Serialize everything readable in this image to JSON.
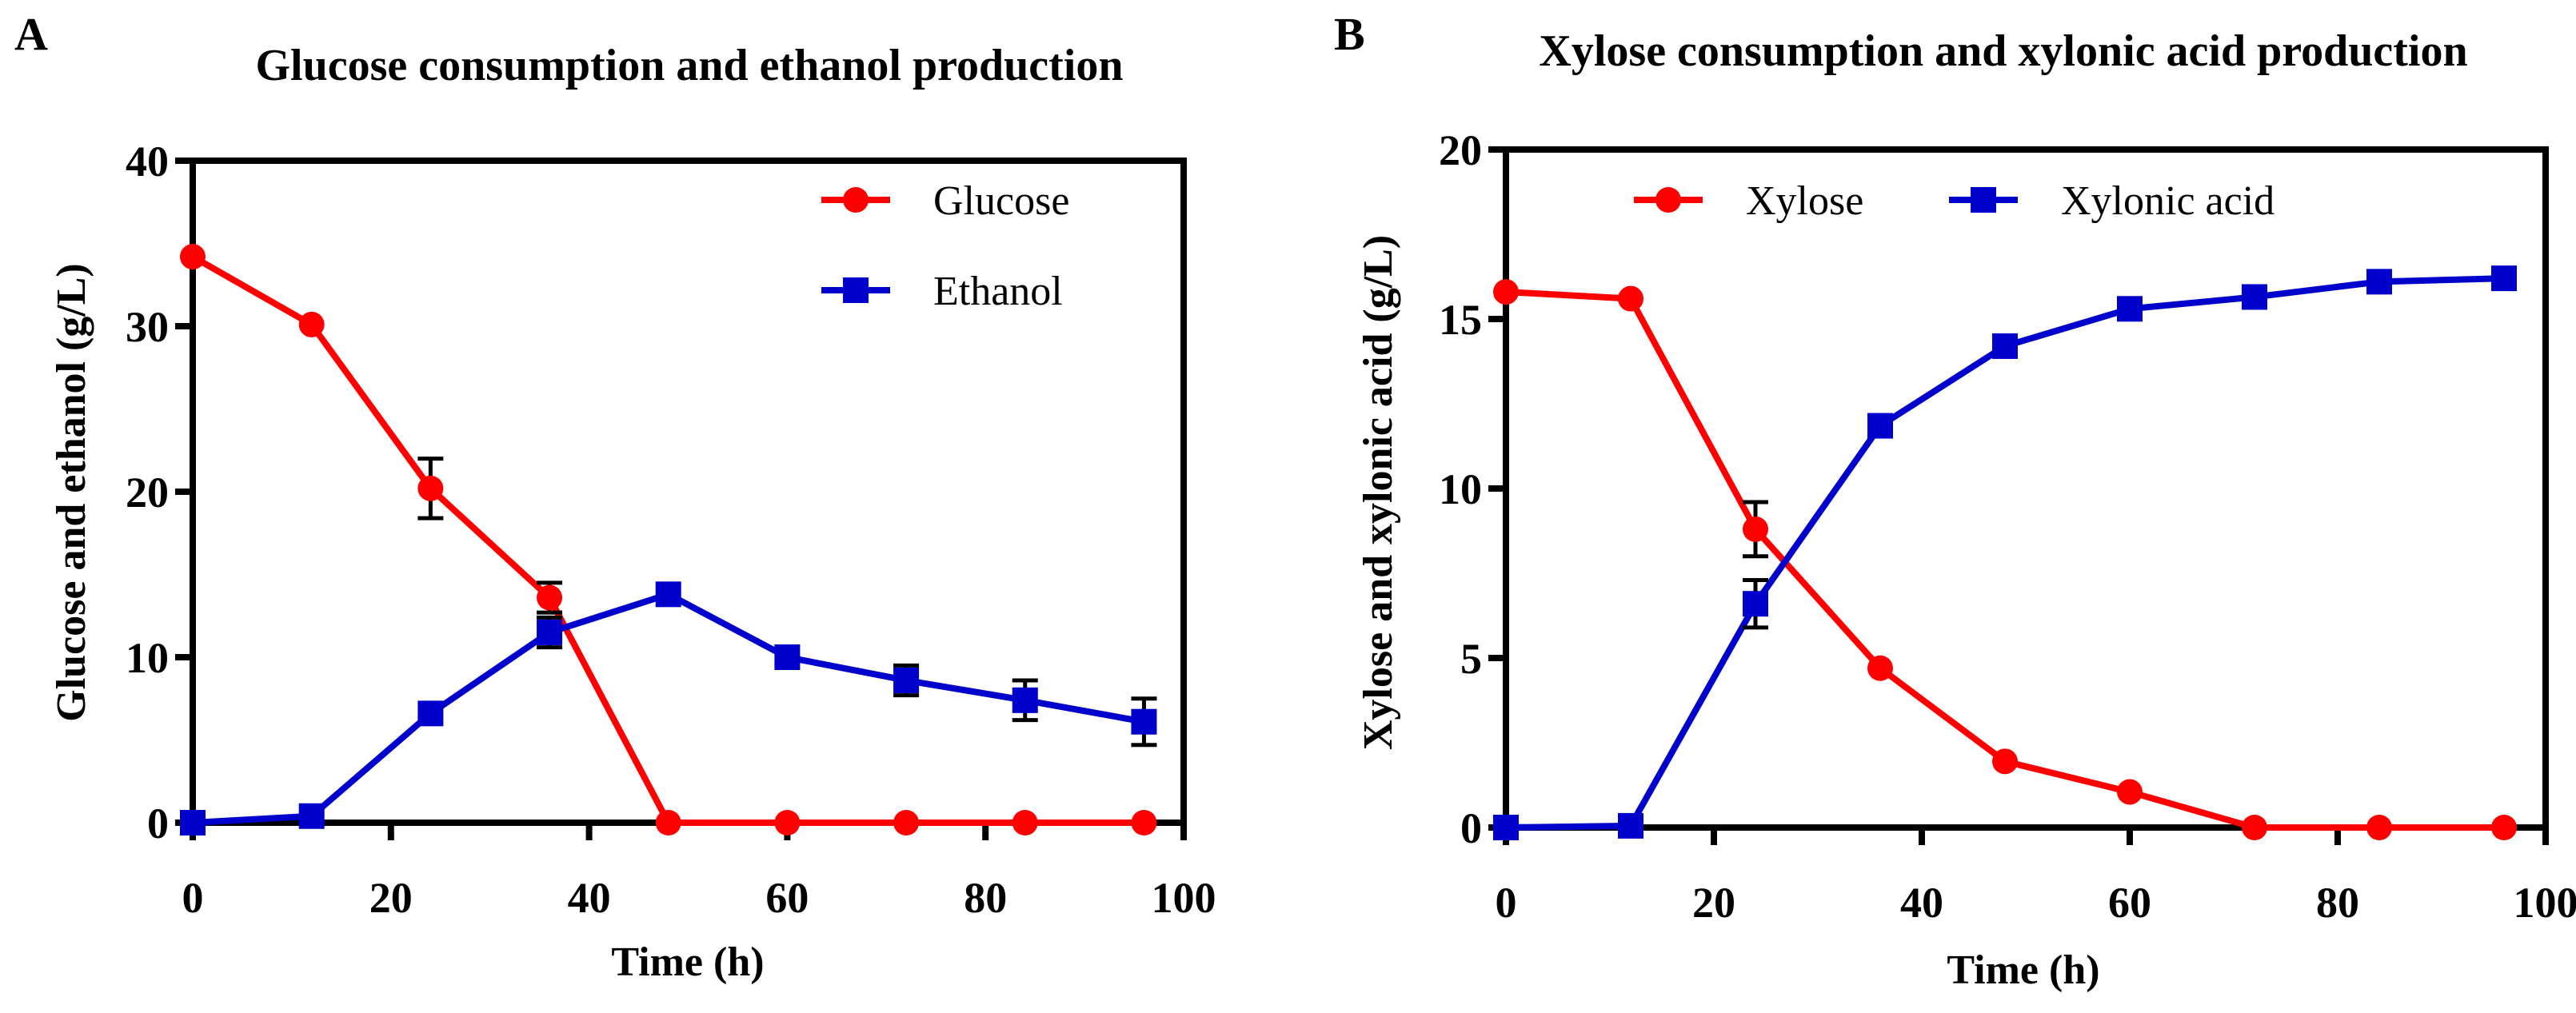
{
  "chart_data": [
    {
      "panel_label": "A",
      "type": "line",
      "title": "Glucose consumption and ethanol production",
      "xlabel": "Time (h)",
      "ylabel": "Glucose and ethanol (g/L)",
      "xlim": [
        0,
        100
      ],
      "ylim": [
        0,
        40
      ],
      "xticks": [
        0,
        20,
        40,
        60,
        80,
        100
      ],
      "yticks": [
        0,
        10,
        20,
        30,
        40
      ],
      "grid": false,
      "legend_position": "top-right",
      "legend_layout": "vertical",
      "x": [
        0,
        12,
        24,
        36,
        48,
        60,
        72,
        84,
        96
      ],
      "series": [
        {
          "name": "Glucose",
          "color": "#ff0000",
          "marker": "circle",
          "values": [
            34.2,
            30.1,
            20.2,
            13.6,
            0,
            0,
            0,
            0,
            0
          ],
          "errors": [
            0,
            0,
            1.8,
            0.9,
            0,
            0,
            0,
            0,
            0
          ]
        },
        {
          "name": "Ethanol",
          "color": "#0000cc",
          "marker": "square",
          "values": [
            0,
            0.4,
            6.6,
            11.5,
            13.8,
            10.0,
            8.6,
            7.4,
            6.1
          ],
          "errors": [
            0,
            0,
            0,
            0.9,
            0,
            0,
            0.9,
            1.2,
            1.4
          ]
        }
      ]
    },
    {
      "panel_label": "B",
      "type": "line",
      "title": "Xylose consumption and xylonic acid production",
      "xlabel": "Time (h)",
      "ylabel": "Xylose and xylonic acid (g/L)",
      "xlim": [
        0,
        100
      ],
      "ylim": [
        0,
        20
      ],
      "xticks": [
        0,
        20,
        40,
        60,
        80,
        100
      ],
      "yticks": [
        0,
        5,
        10,
        15,
        20
      ],
      "grid": false,
      "legend_position": "top",
      "legend_layout": "horizontal",
      "x": [
        0,
        12,
        24,
        36,
        48,
        60,
        72,
        84,
        96
      ],
      "series": [
        {
          "name": "Xylose",
          "color": "#ff0000",
          "marker": "circle",
          "values": [
            15.8,
            15.6,
            8.8,
            4.7,
            1.95,
            1.05,
            0,
            0,
            0
          ],
          "errors": [
            0,
            0,
            0.8,
            0,
            0,
            0,
            0,
            0,
            0
          ]
        },
        {
          "name": "Xylonic acid",
          "color": "#0000cc",
          "marker": "square",
          "values": [
            0,
            0.05,
            6.6,
            11.85,
            14.2,
            15.3,
            15.65,
            16.1,
            16.2
          ],
          "errors": [
            0,
            0,
            0.7,
            0,
            0,
            0.2,
            0.2,
            0,
            0
          ]
        }
      ]
    }
  ]
}
